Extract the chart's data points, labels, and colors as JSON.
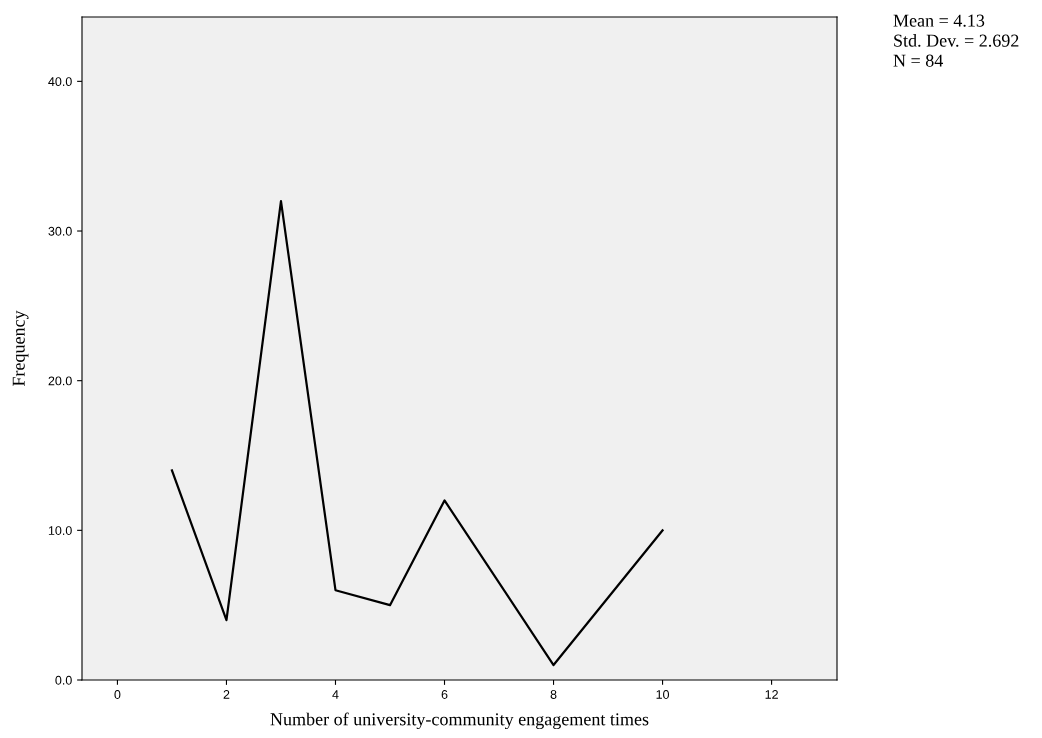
{
  "chart_data": {
    "type": "line",
    "xlabel": "Number of university-community engagement times",
    "ylabel": "Frequency",
    "x": [
      1,
      2,
      3,
      4,
      5,
      6,
      8,
      10
    ],
    "series": [
      {
        "color": "#000000",
        "values": [
          14,
          4,
          32,
          6,
          5,
          12,
          1,
          10
        ]
      }
    ],
    "xlim": [
      -0.65,
      13.2
    ],
    "xticks": [
      0,
      2,
      4,
      6,
      8,
      10,
      12
    ],
    "ylim": [
      0,
      44.3
    ],
    "yticks": [
      {
        "value": 0,
        "label": "0.0"
      },
      {
        "value": 10,
        "label": "10.0"
      },
      {
        "value": 20,
        "label": "20.0"
      },
      {
        "value": 30,
        "label": "30.0"
      },
      {
        "value": 40,
        "label": "40.0"
      }
    ],
    "grid": false,
    "legend": false,
    "marker": "none",
    "line_style": "solid",
    "annotations": [
      "Mean = 4.13",
      "Std. Dev. = 2.692",
      "N = 84"
    ]
  }
}
